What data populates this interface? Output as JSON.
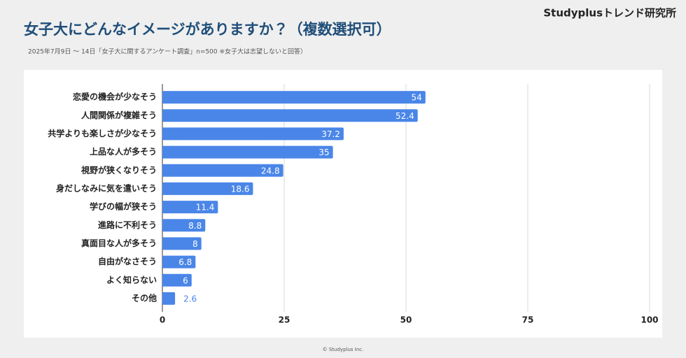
{
  "brand": "Studyplusトレンド研究所",
  "footer": "© Studyplus Inc.",
  "chart_data": {
    "type": "hbar",
    "title": "女子大にどんなイメージがありますか？（複数選択可）",
    "subtitle": "2025年7月9日 〜 14日「女子大に関するアンケート調査」n=500 ※女子大は志望しないと回答）",
    "categories": [
      "恋愛の機会が少なそう",
      "人間関係が複雑そう",
      "共学よりも楽しさが少なそう",
      "上品な人が多そう",
      "視野が狭くなりそう",
      "身だしなみに気を遣いそう",
      "学びの幅が狭そう",
      "進路に不利そう",
      "真面目な人が多そう",
      "自由がなさそう",
      "よく知らない",
      "その他"
    ],
    "values": [
      54,
      52.4,
      37.2,
      35,
      24.8,
      18.6,
      11.4,
      8.8,
      8,
      6.8,
      6,
      2.6
    ],
    "color": "#4a86e8",
    "xlim": [
      0,
      100
    ],
    "xticks": [
      0,
      25,
      50,
      75,
      100
    ],
    "grid": true
  }
}
